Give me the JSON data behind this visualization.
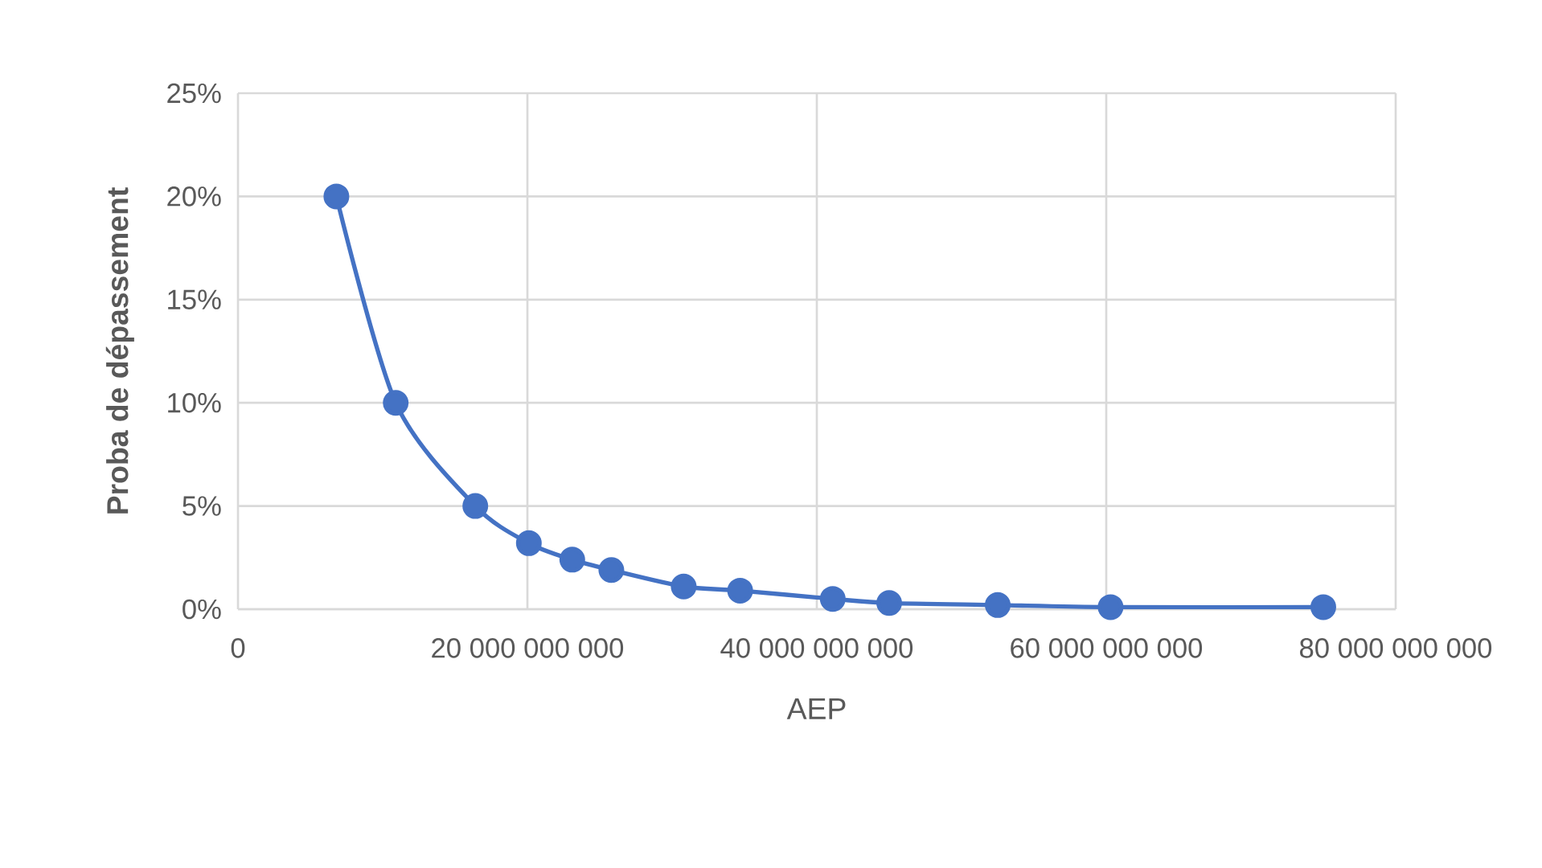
{
  "chart_data": {
    "type": "line",
    "xlabel": "AEP",
    "ylabel": "Proba de dépassement",
    "x": [
      6800000000,
      10900000000,
      16400000000,
      20100000000,
      23100000000,
      25800000000,
      30800000000,
      34700000000,
      41100000000,
      45000000000,
      52500000000,
      60300000000,
      75000000000
    ],
    "values": [
      20,
      10,
      5,
      3.2,
      2.4,
      1.9,
      1.1,
      0.9,
      0.5,
      0.3,
      0.2,
      0.1,
      0.1
    ],
    "color": "#4472c4",
    "marker": "circle",
    "line_style": "solid",
    "grid": true,
    "xlim": [
      0,
      80000000000
    ],
    "ylim": [
      0,
      25
    ],
    "xticks": [
      0,
      {
        "value": 20000000000,
        "label": "20 000 000 000"
      },
      {
        "value": 40000000000,
        "label": "40 000 000 000"
      },
      {
        "value": 60000000000,
        "label": "60 000 000 000"
      },
      {
        "value": 80000000000,
        "label": "80 000 000 000"
      }
    ],
    "yticks": [
      {
        "value": 0,
        "label": "0%"
      },
      {
        "value": 5,
        "label": "5%"
      },
      {
        "value": 10,
        "label": "10%"
      },
      {
        "value": 15,
        "label": "15%"
      },
      {
        "value": 20,
        "label": "20%"
      },
      {
        "value": 25,
        "label": "25%"
      }
    ]
  }
}
